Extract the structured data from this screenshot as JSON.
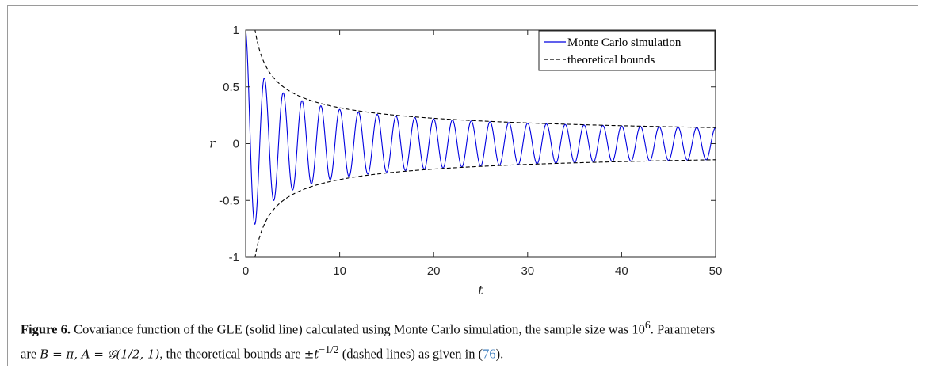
{
  "figure": {
    "label": "Figure 6.",
    "caption_line1": " Covariance function of the GLE (solid line) calculated using Monte Carlo simulation, the sample size was 10",
    "caption_sup": "6",
    "caption_line1_end": ". Parameters",
    "caption_line2_a": "are ",
    "caption_math_b": "B = π, A = 𝒢(1/2, 1)",
    "caption_line2_b": ", the theoretical bounds are ",
    "caption_math_bound": "±t",
    "caption_math_exp": "−1/2",
    "caption_line2_c": " (dashed lines) as given in (",
    "caption_ref": "76",
    "caption_line2_d": ")."
  },
  "chart_data": {
    "type": "line",
    "xlabel": "t",
    "ylabel": "r",
    "xlim": [
      0,
      50
    ],
    "ylim": [
      -1,
      1
    ],
    "xticks": [
      0,
      10,
      20,
      30,
      40,
      50
    ],
    "xtick_labels": [
      "0",
      "10",
      "20",
      "30",
      "40",
      "50"
    ],
    "yticks": [
      -1,
      -0.5,
      0,
      0.5,
      1
    ],
    "ytick_labels": [
      "-1",
      "-0.5",
      "0",
      "0.5",
      "1"
    ],
    "grid": false,
    "legend_position": "top-right",
    "series": [
      {
        "name": "Monte Carlo simulation",
        "style": "solid",
        "color": "#0000e0",
        "function": "cos(pi*t) * (1 + t)^(-1/2)",
        "period": 2,
        "x_sampled": [
          0,
          1,
          2,
          3,
          4,
          6,
          10,
          20,
          30,
          40,
          50
        ],
        "y_sampled": [
          1,
          -0.69,
          0.58,
          -0.5,
          0.45,
          0.38,
          0.3,
          0.22,
          0.18,
          0.16,
          0.14
        ]
      },
      {
        "name": "theoretical bounds",
        "style": "dashed",
        "color": "#000000",
        "function": "± t^(-1/2)",
        "x_sampled": [
          1,
          2,
          4,
          10,
          20,
          30,
          40,
          50
        ],
        "y_upper": [
          1,
          0.707,
          0.5,
          0.316,
          0.224,
          0.183,
          0.158,
          0.141
        ],
        "y_lower": [
          -1,
          -0.707,
          -0.5,
          -0.316,
          -0.224,
          -0.183,
          -0.158,
          -0.141
        ]
      }
    ]
  }
}
